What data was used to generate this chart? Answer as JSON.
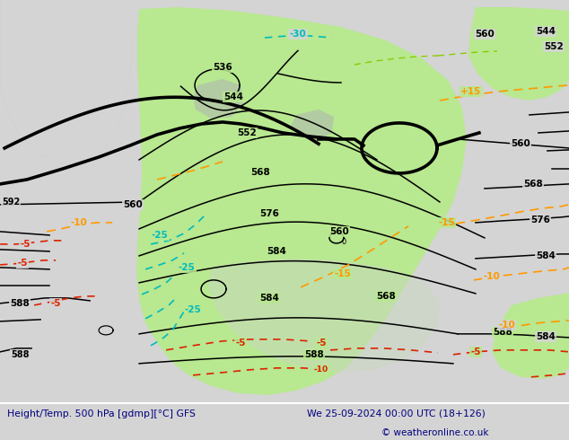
{
  "title_left": "Height/Temp. 500 hPa [gdmp][°C] GFS",
  "title_right": "We 25-09-2024 00:00 UTC (18+126)",
  "copyright": "© weatheronline.co.uk",
  "bg_color": "#d4d4d4",
  "green_fill": "#b8e890",
  "gray_land": "#b8b8b8",
  "bottom_bar_color": "#e8e8e8",
  "text_color": "#000080",
  "contour_black_lw": 1.1,
  "contour_thick_lw": 2.6
}
